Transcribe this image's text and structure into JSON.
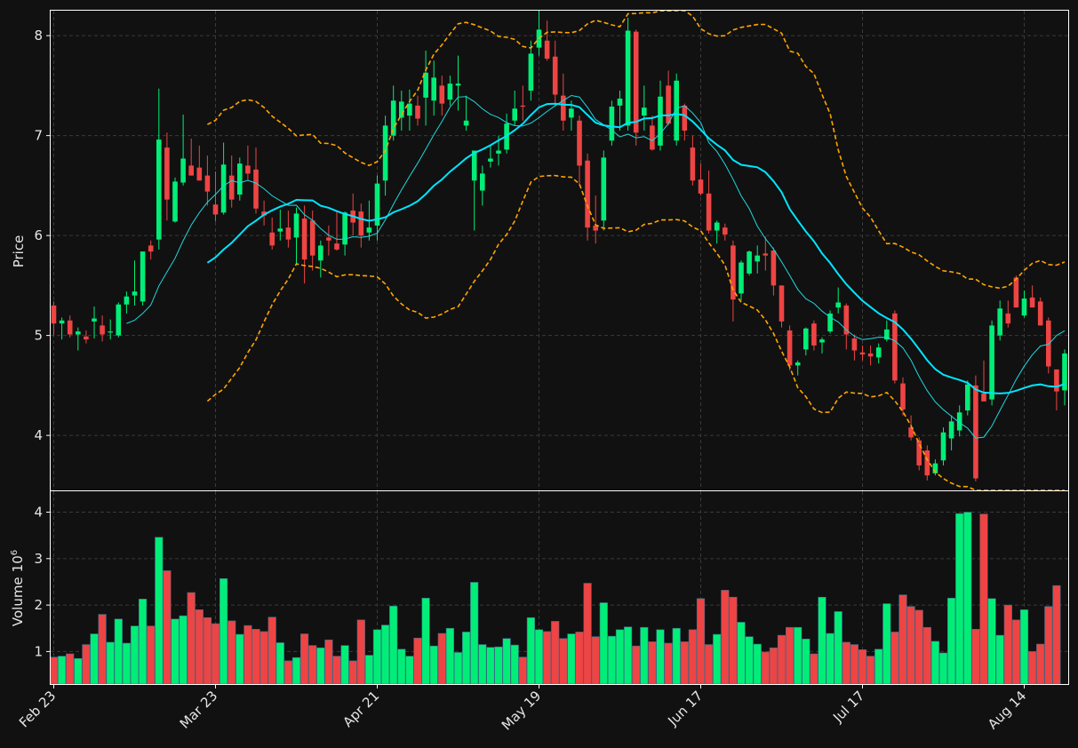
{
  "chart_data": {
    "type": "candlestick",
    "colors": {
      "background": "#111111",
      "up": "#00ee77",
      "down": "#ee4444",
      "ma_fast": "#20d8dc",
      "ma_slow": "#00e5ff",
      "bollinger": "#ffa500",
      "grid": "#3a3a3a",
      "axis": "#ffffff",
      "text": "#e6e6e6"
    },
    "price_panel": {
      "ylabel": "Price",
      "ylim": [
        3.45,
        8.25
      ],
      "yticks": [
        4,
        5,
        6,
        7,
        8
      ],
      "grid": true
    },
    "volume_panel": {
      "ylabel": "Volume",
      "ylabel_exponent": "10",
      "ylabel_power": "6",
      "ylim": [
        0.3,
        4.45
      ],
      "yticks": [
        1,
        2,
        3,
        4
      ],
      "grid": true
    },
    "x_axis": {
      "start_date": "Feb 23",
      "tick_labels": [
        "Feb 23",
        "Mar 23",
        "Apr 21",
        "May 19",
        "Jun 17",
        "Jul 17",
        "Aug 14"
      ],
      "tick_index": [
        0,
        20,
        40,
        60,
        80,
        100,
        120
      ]
    },
    "ohlc": [
      [
        5.3,
        5.34,
        5.0,
        5.12
      ],
      [
        5.12,
        5.18,
        4.96,
        5.15
      ],
      [
        5.15,
        5.2,
        4.98,
        5.01
      ],
      [
        5.01,
        5.08,
        4.85,
        5.04
      ],
      [
        4.99,
        5.05,
        4.92,
        4.96
      ],
      [
        5.14,
        5.29,
        4.97,
        5.17
      ],
      [
        5.1,
        5.2,
        4.94,
        5.01
      ],
      [
        5.03,
        5.16,
        4.96,
        5.04
      ],
      [
        5.0,
        5.33,
        4.98,
        5.31
      ],
      [
        5.31,
        5.44,
        5.22,
        5.39
      ],
      [
        5.4,
        5.75,
        5.3,
        5.44
      ],
      [
        5.34,
        5.84,
        5.3,
        5.84
      ],
      [
        5.9,
        5.95,
        5.76,
        5.84
      ],
      [
        5.96,
        7.47,
        5.86,
        6.96
      ],
      [
        6.88,
        7.03,
        6.15,
        6.36
      ],
      [
        6.14,
        6.58,
        6.13,
        6.54
      ],
      [
        6.53,
        7.21,
        6.5,
        6.77
      ],
      [
        6.7,
        6.97,
        6.63,
        6.6
      ],
      [
        6.68,
        6.9,
        6.57,
        6.55
      ],
      [
        6.6,
        6.8,
        6.3,
        6.44
      ],
      [
        6.31,
        6.64,
        6.14,
        6.21
      ],
      [
        6.23,
        6.93,
        6.21,
        6.71
      ],
      [
        6.6,
        6.8,
        6.28,
        6.36
      ],
      [
        6.41,
        6.78,
        6.35,
        6.72
      ],
      [
        6.7,
        6.9,
        6.55,
        6.62
      ],
      [
        6.66,
        6.88,
        6.22,
        6.27
      ],
      [
        6.24,
        6.35,
        6.1,
        6.2
      ],
      [
        6.03,
        6.18,
        5.86,
        5.9
      ],
      [
        6.04,
        6.26,
        5.95,
        6.07
      ],
      [
        6.08,
        6.25,
        5.88,
        5.96
      ],
      [
        5.98,
        6.28,
        5.72,
        6.22
      ],
      [
        6.17,
        6.3,
        5.52,
        5.76
      ],
      [
        6.15,
        6.25,
        5.65,
        5.8
      ],
      [
        5.75,
        5.95,
        5.58,
        5.9
      ],
      [
        5.98,
        6.1,
        5.8,
        5.95
      ],
      [
        5.92,
        6.25,
        5.85,
        5.86
      ],
      [
        5.91,
        6.24,
        5.8,
        6.23
      ],
      [
        6.25,
        6.42,
        6.0,
        6.13
      ],
      [
        6.24,
        6.32,
        5.88,
        6.0
      ],
      [
        6.03,
        6.35,
        5.95,
        6.08
      ],
      [
        6.1,
        6.6,
        5.95,
        6.52
      ],
      [
        6.55,
        7.2,
        6.4,
        7.1
      ],
      [
        7.0,
        7.5,
        6.95,
        7.35
      ],
      [
        7.18,
        7.45,
        7.05,
        7.34
      ],
      [
        7.2,
        7.46,
        7.05,
        7.32
      ],
      [
        7.3,
        7.4,
        7.1,
        7.17
      ],
      [
        7.38,
        7.85,
        7.1,
        7.63
      ],
      [
        7.35,
        7.75,
        7.2,
        7.58
      ],
      [
        7.5,
        7.6,
        7.2,
        7.32
      ],
      [
        7.36,
        7.6,
        7.3,
        7.52
      ],
      [
        7.5,
        7.8,
        7.25,
        7.52
      ],
      [
        7.1,
        7.4,
        7.05,
        7.15
      ],
      [
        6.55,
        6.85,
        6.05,
        6.85
      ],
      [
        6.45,
        6.7,
        6.3,
        6.62
      ],
      [
        6.74,
        6.9,
        6.68,
        6.77
      ],
      [
        6.82,
        7.0,
        6.7,
        6.85
      ],
      [
        6.86,
        7.22,
        6.82,
        7.12
      ],
      [
        7.15,
        7.45,
        7.1,
        7.27
      ],
      [
        7.3,
        7.5,
        7.15,
        7.29
      ],
      [
        7.45,
        7.95,
        7.35,
        7.82
      ],
      [
        7.88,
        8.25,
        7.8,
        8.06
      ],
      [
        7.95,
        8.15,
        7.75,
        7.77
      ],
      [
        7.79,
        7.95,
        7.3,
        7.41
      ],
      [
        7.4,
        7.62,
        7.05,
        7.15
      ],
      [
        7.18,
        7.35,
        7.05,
        7.27
      ],
      [
        7.15,
        7.2,
        6.5,
        6.7
      ],
      [
        6.75,
        6.82,
        5.95,
        6.08
      ],
      [
        6.1,
        6.4,
        5.92,
        6.05
      ],
      [
        6.15,
        6.85,
        6.05,
        6.78
      ],
      [
        6.95,
        7.35,
        6.9,
        7.29
      ],
      [
        7.3,
        7.45,
        7.05,
        7.37
      ],
      [
        7.1,
        8.18,
        7.05,
        8.05
      ],
      [
        8.04,
        8.06,
        6.9,
        7.03
      ],
      [
        7.2,
        7.5,
        7.05,
        7.28
      ],
      [
        7.1,
        7.2,
        6.85,
        6.86
      ],
      [
        6.9,
        7.55,
        6.85,
        7.39
      ],
      [
        7.5,
        7.65,
        7.1,
        7.12
      ],
      [
        6.95,
        7.62,
        6.9,
        7.55
      ],
      [
        7.3,
        7.32,
        6.95,
        7.05
      ],
      [
        6.88,
        7.0,
        6.5,
        6.55
      ],
      [
        6.56,
        6.72,
        6.4,
        6.42
      ],
      [
        6.42,
        6.65,
        6.02,
        6.05
      ],
      [
        6.05,
        6.15,
        5.92,
        6.13
      ],
      [
        6.08,
        6.12,
        5.95,
        6.01
      ],
      [
        5.9,
        5.95,
        5.14,
        5.36
      ],
      [
        5.42,
        5.75,
        5.35,
        5.73
      ],
      [
        5.62,
        5.85,
        5.6,
        5.84
      ],
      [
        5.74,
        5.9,
        5.62,
        5.8
      ],
      [
        5.82,
        5.99,
        5.65,
        5.8
      ],
      [
        5.85,
        5.88,
        5.4,
        5.5
      ],
      [
        5.5,
        5.5,
        5.08,
        5.14
      ],
      [
        5.05,
        5.1,
        4.65,
        4.7
      ],
      [
        4.7,
        4.75,
        4.6,
        4.73
      ],
      [
        4.86,
        5.08,
        4.8,
        5.07
      ],
      [
        5.12,
        5.15,
        4.85,
        4.9
      ],
      [
        4.93,
        4.98,
        4.82,
        4.96
      ],
      [
        5.04,
        5.25,
        5.02,
        5.22
      ],
      [
        5.28,
        5.48,
        5.22,
        5.33
      ],
      [
        5.3,
        5.32,
        4.86,
        5.01
      ],
      [
        4.97,
        5.01,
        4.75,
        4.85
      ],
      [
        4.83,
        4.9,
        4.75,
        4.81
      ],
      [
        4.82,
        4.9,
        4.7,
        4.79
      ],
      [
        4.78,
        4.92,
        4.72,
        4.88
      ],
      [
        4.96,
        5.15,
        4.94,
        5.06
      ],
      [
        5.22,
        5.25,
        4.52,
        4.55
      ],
      [
        4.52,
        4.58,
        4.2,
        4.26
      ],
      [
        4.08,
        4.2,
        3.95,
        3.98
      ],
      [
        3.95,
        3.98,
        3.65,
        3.7
      ],
      [
        3.85,
        3.9,
        3.55,
        3.6
      ],
      [
        3.62,
        3.76,
        3.6,
        3.72
      ],
      [
        3.75,
        4.08,
        3.7,
        4.03
      ],
      [
        3.97,
        4.2,
        3.85,
        4.14
      ],
      [
        4.05,
        4.3,
        3.99,
        4.23
      ],
      [
        4.25,
        4.55,
        4.2,
        4.51
      ],
      [
        4.5,
        4.6,
        3.54,
        3.57
      ],
      [
        4.42,
        4.75,
        4.35,
        4.34
      ],
      [
        4.36,
        5.15,
        4.3,
        5.1
      ],
      [
        5.0,
        5.35,
        4.95,
        5.27
      ],
      [
        5.22,
        5.35,
        5.08,
        5.12
      ],
      [
        5.58,
        5.6,
        5.28,
        5.28
      ],
      [
        5.2,
        5.45,
        5.18,
        5.37
      ],
      [
        5.38,
        5.5,
        5.28,
        5.28
      ],
      [
        5.34,
        5.38,
        5.1,
        5.1
      ],
      [
        5.15,
        5.18,
        4.62,
        4.69
      ],
      [
        4.66,
        4.66,
        4.25,
        4.44
      ],
      [
        4.45,
        4.86,
        4.3,
        4.82
      ]
    ],
    "volume_millions": [
      0.88,
      0.9,
      0.95,
      0.85,
      1.15,
      1.38,
      1.8,
      1.2,
      1.7,
      1.18,
      1.55,
      2.13,
      1.55,
      3.46,
      2.74,
      1.7,
      1.77,
      2.27,
      1.9,
      1.73,
      1.6,
      2.57,
      1.66,
      1.37,
      1.56,
      1.48,
      1.43,
      1.74,
      1.19,
      0.8,
      0.87,
      1.38,
      1.13,
      1.08,
      1.25,
      0.9,
      1.13,
      0.8,
      1.68,
      0.92,
      1.47,
      1.57,
      1.98,
      1.05,
      0.9,
      1.29,
      2.15,
      1.12,
      1.39,
      1.5,
      0.98,
      1.42,
      2.49,
      1.15,
      1.09,
      1.1,
      1.28,
      1.14,
      0.88,
      1.73,
      1.47,
      1.43,
      1.65,
      1.28,
      1.38,
      1.42,
      2.47,
      1.32,
      2.05,
      1.33,
      1.47,
      1.53,
      1.12,
      1.52,
      1.21,
      1.47,
      1.18,
      1.5,
      1.21,
      1.47,
      2.14,
      1.15,
      1.37,
      2.32,
      2.17,
      1.63,
      1.32,
      1.16,
      0.99,
      1.08,
      1.35,
      1.52,
      1.52,
      1.27,
      0.95,
      2.17,
      1.39,
      1.86,
      1.2,
      1.15,
      1.04,
      0.9,
      1.05,
      2.03,
      1.42,
      2.22,
      1.97,
      1.89,
      1.52,
      1.22,
      0.97,
      2.15,
      3.97,
      4.0,
      1.48,
      3.96,
      2.14,
      1.35,
      2.0,
      1.68,
      1.9,
      1.0,
      1.16,
      1.97,
      2.42
    ],
    "ma_fast": {
      "window": 10,
      "start_index": 9
    },
    "ma_slow": {
      "window": 20,
      "start_index": 19
    },
    "bollinger": {
      "window": 20,
      "k": 2,
      "start_index": 19
    }
  }
}
